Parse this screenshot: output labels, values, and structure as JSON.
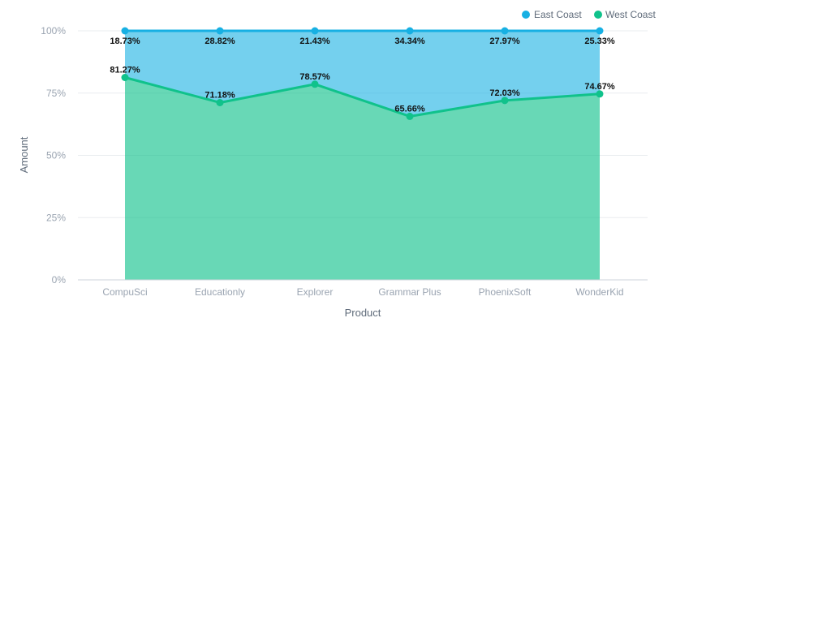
{
  "chart_data": {
    "type": "area",
    "stacked_percent": true,
    "categories": [
      "CompuSci",
      "Educationly",
      "Explorer",
      "Grammar Plus",
      "PhoenixSoft",
      "WonderKid"
    ],
    "series": [
      {
        "name": "West Coast",
        "color": "#10c28b",
        "values": [
          81.27,
          71.18,
          78.57,
          65.66,
          72.03,
          74.67
        ]
      },
      {
        "name": "East Coast",
        "color": "#17b0e3",
        "values": [
          18.73,
          28.82,
          21.43,
          34.34,
          27.97,
          25.33
        ]
      }
    ],
    "legend_order": [
      "East Coast",
      "West Coast"
    ],
    "xlabel": "Product",
    "ylabel": "Amount",
    "ylim": [
      0,
      100
    ],
    "yticks": [
      "0%",
      "25%",
      "50%",
      "75%",
      "100%"
    ],
    "grid": true,
    "legend_position": "top-right"
  }
}
